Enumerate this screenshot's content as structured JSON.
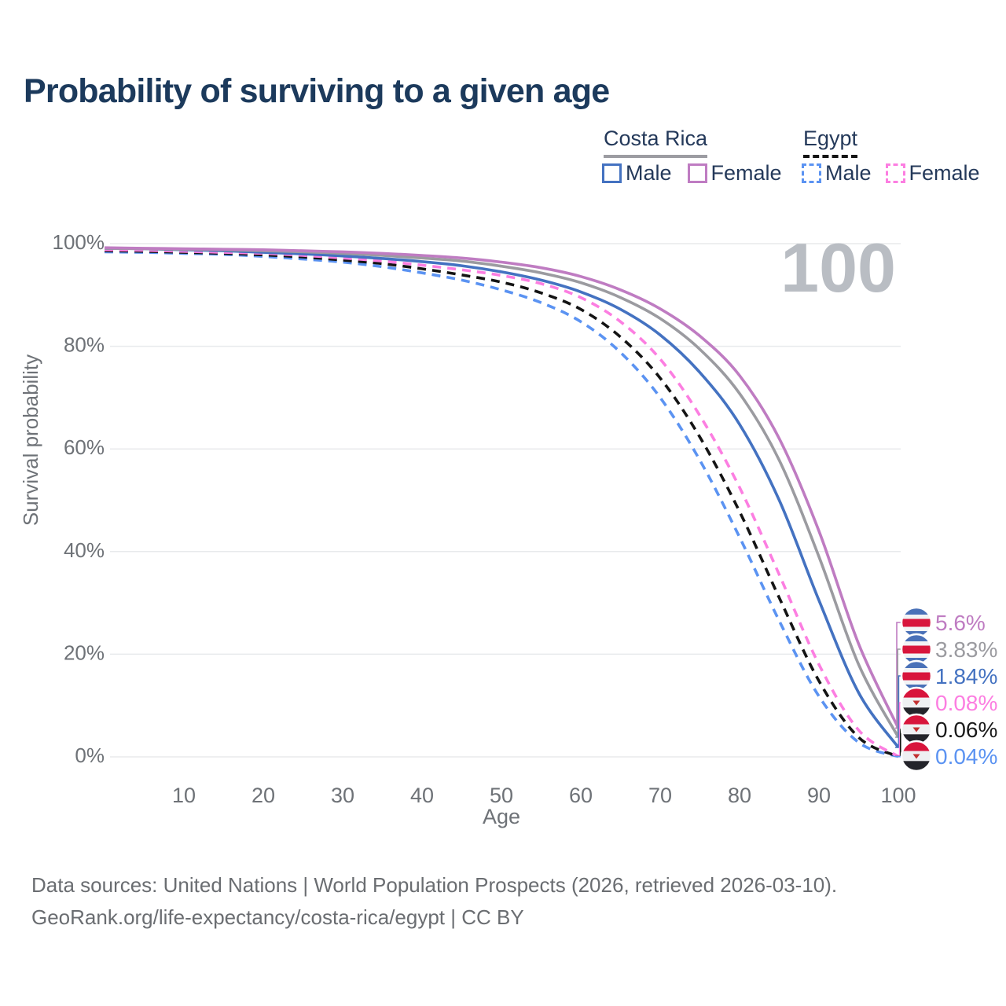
{
  "title": "Probability of surviving to a given age",
  "watermark": "100",
  "legend": {
    "groups": [
      {
        "country": "Costa Rica",
        "style": "solid",
        "header_rule_color": "#9c9ca2",
        "items": [
          {
            "label": "Male",
            "color": "#4472c1"
          },
          {
            "label": "Female",
            "color": "#bf7cc2"
          }
        ]
      },
      {
        "country": "Egypt",
        "style": "dashed",
        "header_rule_color": "#141414",
        "items": [
          {
            "label": "Male",
            "color": "#5b93f2"
          },
          {
            "label": "Female",
            "color": "#fc7ee1"
          }
        ]
      }
    ]
  },
  "chart_data": {
    "type": "line",
    "title": "Probability of surviving to a given age",
    "xlabel": "Age",
    "ylabel": "Survival probability",
    "xlim": [
      0,
      100
    ],
    "ylim": [
      0,
      100
    ],
    "grid": "horizontal",
    "gridline_color": "#e8eaec",
    "axis_text_color": "#6e7277",
    "watermark_color": "#b9bdc3",
    "x_ticks": [
      10,
      20,
      30,
      40,
      50,
      60,
      70,
      80,
      90,
      100
    ],
    "y_ticks": [
      {
        "pct": 100,
        "label": "100%"
      },
      {
        "pct": 80,
        "label": "80%"
      },
      {
        "pct": 60,
        "label": "60%"
      },
      {
        "pct": 40,
        "label": "40%"
      },
      {
        "pct": 20,
        "label": "20%"
      },
      {
        "pct": 0,
        "label": "0%"
      }
    ],
    "x": [
      0,
      5,
      10,
      15,
      20,
      25,
      30,
      35,
      40,
      45,
      50,
      55,
      60,
      65,
      70,
      75,
      80,
      85,
      90,
      95,
      100
    ],
    "series": [
      {
        "name": "Costa Rica Female",
        "color": "#bf7cc2",
        "dash": "solid",
        "flag": "costa-rica",
        "end_label": "5.6%",
        "values": [
          99.2,
          99.1,
          99.0,
          98.9,
          98.8,
          98.6,
          98.4,
          98.1,
          97.7,
          97.2,
          96.4,
          95.3,
          93.6,
          91.0,
          87.3,
          82.0,
          74.3,
          62.0,
          44.0,
          22.0,
          5.6
        ]
      },
      {
        "name": "Costa Rica",
        "color": "#9b9ba0",
        "dash": "solid",
        "flag": "costa-rica",
        "end_label": "3.83%",
        "values": [
          99.1,
          99.0,
          98.9,
          98.8,
          98.6,
          98.4,
          98.1,
          97.7,
          97.2,
          96.6,
          95.6,
          94.3,
          92.4,
          89.5,
          85.4,
          79.4,
          70.8,
          57.8,
          39.0,
          18.0,
          3.83
        ]
      },
      {
        "name": "Costa Rica Male",
        "color": "#4472c1",
        "dash": "solid",
        "flag": "costa-rica",
        "end_label": "1.84%",
        "values": [
          99.1,
          99.0,
          98.8,
          98.6,
          98.3,
          98.0,
          97.6,
          97.1,
          96.5,
          95.7,
          94.5,
          92.9,
          90.6,
          87.2,
          82.2,
          74.9,
          64.8,
          50.0,
          30.5,
          12.5,
          1.84
        ]
      },
      {
        "name": "Egypt Female",
        "color": "#fc7ee1",
        "dash": "dashed",
        "flag": "egypt",
        "end_label": "0.08%",
        "values": [
          98.8,
          98.7,
          98.5,
          98.3,
          98.1,
          97.7,
          97.2,
          96.6,
          95.8,
          94.9,
          93.8,
          92.2,
          89.5,
          84.8,
          77.5,
          66.5,
          52.5,
          35.5,
          18.0,
          5.2,
          0.08
        ]
      },
      {
        "name": "Egypt",
        "color": "#141414",
        "dash": "dashed",
        "flag": "egypt",
        "end_label": "0.06%",
        "values": [
          98.6,
          98.5,
          98.3,
          98.1,
          97.8,
          97.4,
          96.8,
          96.1,
          95.1,
          93.9,
          92.5,
          90.4,
          87.2,
          81.8,
          73.8,
          62.3,
          47.8,
          31.0,
          14.8,
          3.8,
          0.06
        ]
      },
      {
        "name": "Egypt Male",
        "color": "#5b93f2",
        "dash": "dashed",
        "flag": "egypt",
        "end_label": "0.04%",
        "values": [
          98.4,
          98.3,
          98.1,
          97.9,
          97.5,
          97.0,
          96.4,
          95.5,
          94.3,
          92.9,
          91.0,
          88.5,
          84.8,
          78.8,
          70.0,
          57.8,
          42.8,
          26.5,
          11.8,
          2.8,
          0.04
        ]
      }
    ],
    "flag_colors": {
      "costa_rica_blue": "#4a71b8",
      "costa_rica_red": "#d8153c",
      "egypt_red": "#d8153c",
      "egypt_black": "#23242a",
      "egypt_eagle": "#c23131"
    }
  },
  "footer": {
    "line1": "Data sources: United Nations | World Population Prospects (2026, retrieved 2026-03-10).",
    "line2": "GeoRank.org/life-expectancy/costa-rica/egypt | CC BY"
  }
}
